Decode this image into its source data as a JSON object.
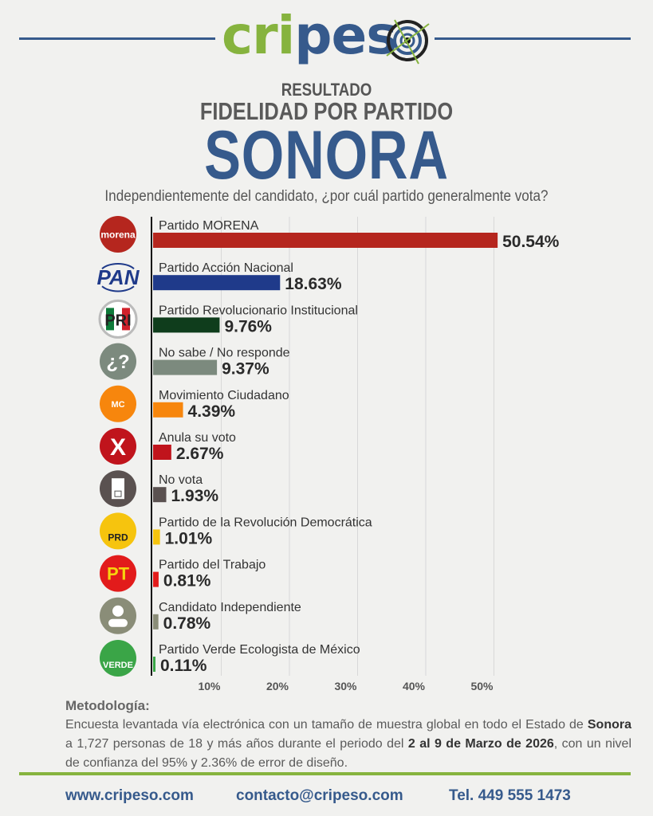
{
  "brand": {
    "logo_text_green": "cri",
    "logo_text_blue": "pes",
    "brand_blue": "#365a8c",
    "brand_green": "#86b33e"
  },
  "header": {
    "kicker": "RESULTADO",
    "title": "FIDELIDAD POR PARTIDO",
    "state": "SONORA",
    "question": "Independientemente del candidato, ¿por cuál partido generalmente vota?"
  },
  "chart_data": {
    "type": "bar",
    "orientation": "horizontal",
    "title": "FIDELIDAD POR PARTIDO",
    "categories": [
      "Partido MORENA",
      "Partido Acción Nacional",
      "Partido Revolucionario Institucional",
      "No sabe / No responde",
      "Movimiento Ciudadano",
      "Anula su voto",
      "No vota",
      "Partido de la Revolución Democrática",
      "Partido del Trabajo",
      "Candidato Independiente",
      "Partido Verde Ecologista de México"
    ],
    "values": [
      50.54,
      18.63,
      9.76,
      9.37,
      4.39,
      2.67,
      1.93,
      1.01,
      0.81,
      0.78,
      0.11
    ],
    "value_labels": [
      "50.54%",
      "18.63%",
      "9.76%",
      "9.37%",
      "4.39%",
      "2.67%",
      "1.93%",
      "1.01%",
      "0.81%",
      "0.78%",
      "0.11%"
    ],
    "colors": [
      "#b5261e",
      "#1f3a8a",
      "#0f3d1c",
      "#7c8a7e",
      "#f7860d",
      "#c0141c",
      "#5a5150",
      "#f6c40e",
      "#e21b1b",
      "#8a8d78",
      "#3aa547"
    ],
    "icons": [
      "morena-logo",
      "pan-logo",
      "pri-logo",
      "question-icon",
      "mc-logo",
      "x-icon",
      "ballot-icon",
      "prd-logo",
      "pt-logo",
      "person-icon",
      "verde-logo"
    ],
    "icon_texts": [
      "morena",
      "PAN",
      "PRI",
      "¿?",
      "MC",
      "X",
      "",
      "PRD",
      "PT",
      "",
      "VERDE"
    ],
    "xticks": [
      "10%",
      "20%",
      "30%",
      "40%",
      "50%"
    ],
    "xtick_values": [
      10,
      20,
      30,
      40,
      50
    ],
    "xlim": [
      0,
      55
    ],
    "grid": true
  },
  "methodology": {
    "title": "Metodología:",
    "p1": "Encuesta levantada vía electrónica con un tamaño de muestra global en todo el Estado de ",
    "b1": "Sonora",
    "p2": " a 1,727 personas de 18 y más años durante el periodo del ",
    "b2": "2 al 9 de Marzo de 2026",
    "p3": ", con un nivel de confianza del 95% y 2.36% de error de diseño."
  },
  "footer": {
    "web": "www.cripeso.com",
    "email": "contacto@cripeso.com",
    "phone": "Tel. 449 555 1473"
  }
}
